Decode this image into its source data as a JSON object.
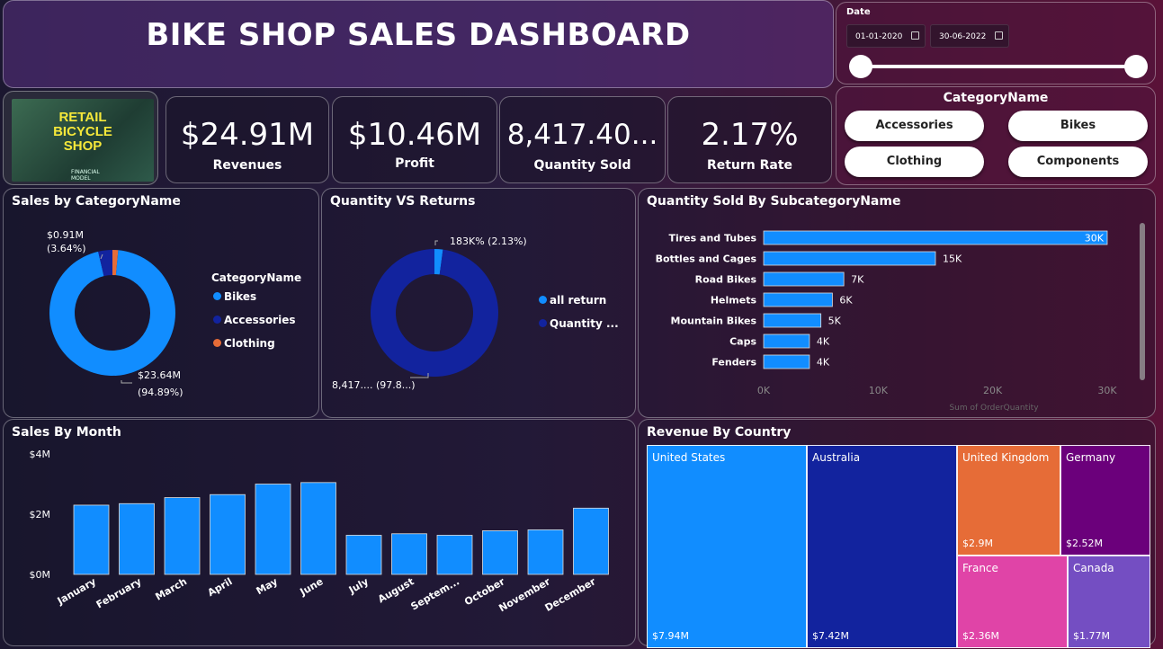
{
  "header": {
    "title": "BIKE SHOP SALES DASHBOARD"
  },
  "date_filter": {
    "label": "Date",
    "start": "01-01-2020",
    "end": "30-06-2022"
  },
  "logo": {
    "line1": "RETAIL",
    "line2": "BICYCLE",
    "line3": "SHOP",
    "sub1": "FINANCIAL",
    "sub2": "MODEL"
  },
  "kpis": [
    {
      "value": "$24.91M",
      "label": "Revenues"
    },
    {
      "value": "$10.46M",
      "label": "Profit"
    },
    {
      "value": "8,417.40...",
      "label": "Quantity Sold"
    },
    {
      "value": "2.17%",
      "label": "Return Rate"
    }
  ],
  "category_filter": {
    "title": "CategoryName",
    "options": [
      "Accessories",
      "Bikes",
      "Clothing",
      "Components"
    ]
  },
  "colors": {
    "blue": "#118dff",
    "navy": "#12239e",
    "orange": "#e66c37",
    "purple": "#6b007b",
    "pink": "#e044a7",
    "violet": "#744ec2"
  },
  "sales_by_category": {
    "title": "Sales by CategoryName",
    "legend_title": "CategoryName",
    "labels": {
      "small_value": "$0.91M",
      "small_pct": "(3.64%)",
      "big_value": "$23.64M",
      "big_pct": "(94.89%)"
    },
    "legend": [
      "Bikes",
      "Accessories",
      "Clothing"
    ]
  },
  "qty_vs_returns": {
    "title": "Quantity VS Returns",
    "labels": {
      "small": "183K% (2.13%)",
      "big": "8,417.... (97.8...)"
    },
    "legend": [
      "all return",
      "Quantity ..."
    ]
  },
  "subcategory": {
    "title": "Quantity Sold By SubcategoryName",
    "axis_title": "Sum of OrderQuantity"
  },
  "sales_by_month": {
    "title": "Sales By Month"
  },
  "revenue_by_country": {
    "title": "Revenue By Country"
  },
  "chart_data": [
    {
      "type": "pie",
      "title": "Sales by CategoryName",
      "categories": [
        "Bikes",
        "Accessories",
        "Clothing"
      ],
      "values": [
        23.64,
        0.91,
        0.36
      ],
      "unit": "$M",
      "percent": [
        94.89,
        3.64,
        1.47
      ]
    },
    {
      "type": "pie",
      "title": "Quantity VS Returns",
      "categories": [
        "all return",
        "Quantity ..."
      ],
      "percent": [
        2.13,
        97.87
      ]
    },
    {
      "type": "bar",
      "orientation": "horizontal",
      "title": "Quantity Sold By SubcategoryName",
      "categories": [
        "Tires and Tubes",
        "Bottles and Cages",
        "Road Bikes",
        "Helmets",
        "Mountain Bikes",
        "Caps",
        "Fenders"
      ],
      "values": [
        30000,
        15000,
        7000,
        6000,
        5000,
        4000,
        4000
      ],
      "data_labels": [
        "30K",
        "15K",
        "7K",
        "6K",
        "5K",
        "4K",
        "4K"
      ],
      "xlim": [
        0,
        30000
      ],
      "xticks": [
        "0K",
        "10K",
        "20K",
        "30K"
      ],
      "xlabel": "Sum of OrderQuantity"
    },
    {
      "type": "bar",
      "title": "Sales By Month",
      "categories": [
        "January",
        "February",
        "March",
        "April",
        "May",
        "June",
        "July",
        "August",
        "Septem...",
        "October",
        "November",
        "December"
      ],
      "values": [
        2.3,
        2.35,
        2.55,
        2.65,
        3.0,
        3.05,
        1.3,
        1.35,
        1.3,
        1.45,
        1.48,
        2.2
      ],
      "unit": "$M",
      "ylim": [
        0,
        4
      ],
      "yticks": [
        "$0M",
        "$2M",
        "$4M"
      ]
    },
    {
      "type": "treemap",
      "title": "Revenue By Country",
      "categories": [
        "United States",
        "Australia",
        "United Kingdom",
        "Germany",
        "France",
        "Canada"
      ],
      "values": [
        7.94,
        7.42,
        2.9,
        2.52,
        2.36,
        1.77
      ],
      "data_labels": [
        "$7.94M",
        "$7.42M",
        "$2.9M",
        "$2.52M",
        "$2.36M",
        "$1.77M"
      ]
    }
  ]
}
